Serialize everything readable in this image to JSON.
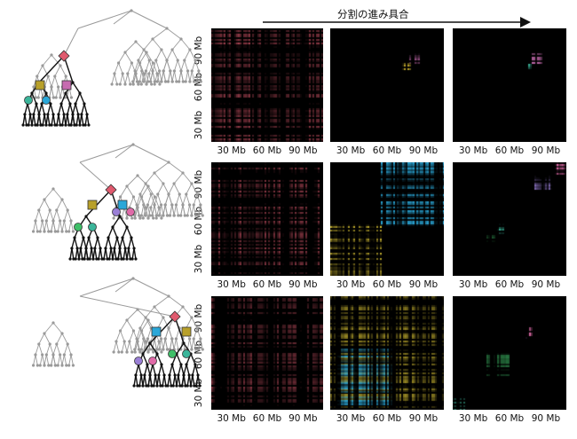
{
  "header": {
    "arrow_label": "分割の進み具合"
  },
  "axis": {
    "x_ticks": [
      "30 Mb",
      "60 Mb",
      "90 Mb"
    ],
    "y_ticks": [
      "90 Mb",
      "60 Mb",
      "30 Mb"
    ]
  },
  "colors": {
    "red": "#e05a6e",
    "olive": "#b8a02a",
    "magenta": "#c76bb0",
    "teal": "#3bb59a",
    "blue": "#2aa7d8",
    "yellow": "#d9c233",
    "purple": "#9a7fd6",
    "pink": "#e06aa8",
    "green": "#3fbf68",
    "gray": "#9a9a9a",
    "black": "#000000"
  },
  "rows": [
    {
      "tree_highlight": [
        "diamond-red",
        "square-olive",
        "square-magenta",
        "circle-teal",
        "circle-blue"
      ],
      "panels": [
        {
          "blocks": [
            {
              "c": "red",
              "r": [
                0.0,
                1.0
              ],
              "a": 0.55
            }
          ]
        },
        {
          "blocks": [
            {
              "c": "magenta",
              "r": [
                0.7,
                0.78
              ],
              "a": 0.9
            },
            {
              "c": "olive",
              "r": [
                0.64,
                0.71
              ],
              "a": 0.9
            }
          ]
        },
        {
          "blocks": [
            {
              "c": "magenta",
              "r": [
                0.7,
                0.78
              ],
              "a": 0.9
            },
            {
              "c": "teal",
              "r": [
                0.65,
                0.68
              ],
              "a": 0.9
            }
          ]
        }
      ]
    },
    {
      "tree_highlight": [
        "diamond-red",
        "square-olive",
        "square-blue",
        "circle-green",
        "circle-teal",
        "circle-purple",
        "circle-pink"
      ],
      "panels": [
        {
          "blocks": [
            {
              "c": "red",
              "r": [
                0.0,
                1.0
              ],
              "a": 0.5
            }
          ]
        },
        {
          "blocks": [
            {
              "c": "yellow",
              "r": [
                0.0,
                0.45
              ],
              "a": 0.8
            },
            {
              "c": "blue",
              "r": [
                0.45,
                1.0
              ],
              "a": 0.8
            }
          ]
        },
        {
          "blocks": [
            {
              "c": "pink",
              "r": [
                0.9,
                1.0
              ],
              "a": 0.9
            },
            {
              "c": "purple",
              "r": [
                0.72,
                0.88
              ],
              "a": 0.7
            },
            {
              "c": "teal",
              "r": [
                0.38,
                0.46
              ],
              "a": 0.9
            },
            {
              "c": "green",
              "r": [
                0.3,
                0.37
              ],
              "a": 0.9
            }
          ]
        }
      ]
    },
    {
      "tree_highlight": [
        "diamond-red",
        "square-blue",
        "square-olive",
        "circle-purple",
        "circle-pink",
        "circle-green",
        "circle-teal"
      ],
      "panels": [
        {
          "blocks": [
            {
              "c": "red",
              "r": [
                0.0,
                1.0
              ],
              "a": 0.45
            }
          ]
        },
        {
          "blocks": [
            {
              "c": "yellow",
              "r": [
                0.0,
                1.0
              ],
              "a": 0.55
            },
            {
              "c": "blue",
              "r": [
                0.05,
                0.55
              ],
              "a": 0.7
            }
          ]
        },
        {
          "blocks": [
            {
              "c": "pink",
              "r": [
                0.66,
                0.72
              ],
              "a": 0.9
            },
            {
              "c": "purple",
              "r": [
                0.6,
                0.65
              ],
              "a": 0.7
            },
            {
              "c": "green",
              "r": [
                0.3,
                0.5
              ],
              "a": 0.5
            },
            {
              "c": "teal",
              "r": [
                0.0,
                0.1
              ],
              "a": 0.6
            }
          ]
        }
      ]
    }
  ]
}
